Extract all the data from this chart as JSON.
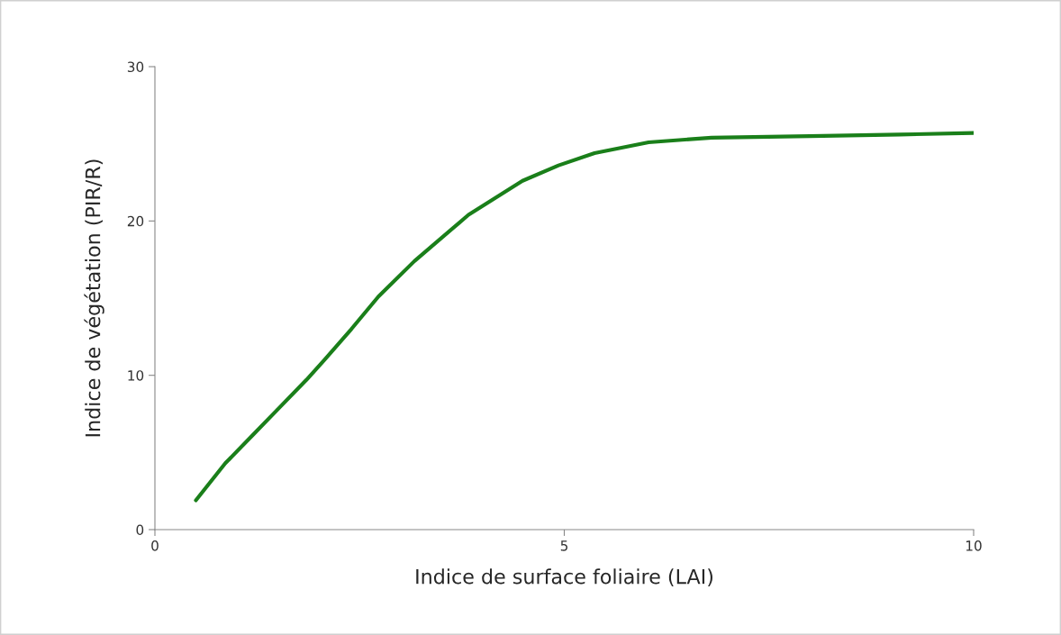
{
  "chart_data": {
    "type": "line",
    "xlabel": "Indice de surface foliaire (LAI)",
    "ylabel": "Indice de végétation (PIR/R)",
    "x": [
      0.5,
      0.86,
      1.19,
      1.52,
      1.85,
      2.07,
      2.4,
      2.73,
      3.17,
      3.83,
      4.49,
      4.93,
      5.37,
      6.03,
      6.8,
      8.0,
      9.1,
      10.0
    ],
    "series": [
      {
        "color": "#1a7f1a",
        "values": [
          1.9,
          4.3,
          6.1,
          7.9,
          9.7,
          11.0,
          13.0,
          15.1,
          17.4,
          20.4,
          22.6,
          23.6,
          24.4,
          25.1,
          25.4,
          25.5,
          25.6,
          25.7
        ]
      }
    ],
    "xlim": [
      0,
      10
    ],
    "xticks": [
      0,
      5,
      10
    ],
    "ylim": [
      0,
      30
    ],
    "yticks": [
      0,
      10,
      20,
      30
    ],
    "grid": false,
    "marker": "none",
    "line_style": "solid"
  }
}
